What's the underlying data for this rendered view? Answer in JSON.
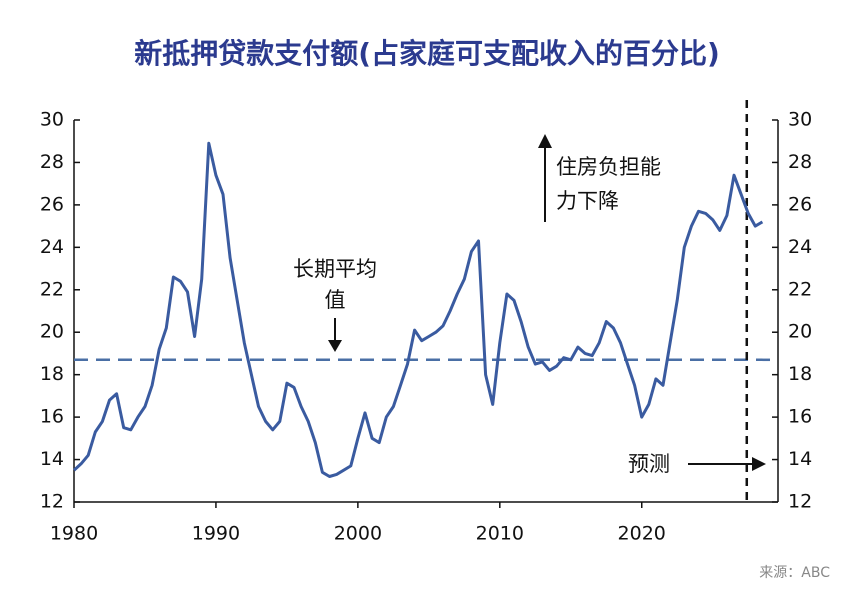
{
  "chart_data": {
    "type": "line",
    "title": "新抵押贷款支付额(占家庭可支配收入的百分比)",
    "x": [
      1980,
      1980.5,
      1981,
      1981.5,
      1982,
      1982.5,
      1983,
      1983.5,
      1984,
      1984.5,
      1985,
      1985.5,
      1986,
      1986.5,
      1987,
      1987.5,
      1988,
      1988.5,
      1989,
      1989.5,
      1990,
      1990.5,
      1991,
      1991.5,
      1992,
      1992.5,
      1993,
      1993.5,
      1994,
      1994.5,
      1995,
      1995.5,
      1996,
      1996.5,
      1997,
      1997.5,
      1998,
      1998.5,
      1999,
      1999.5,
      2000,
      2000.5,
      2001,
      2001.5,
      2002,
      2002.5,
      2003,
      2003.5,
      2004,
      2004.5,
      2005,
      2005.5,
      2006,
      2006.5,
      2007,
      2007.5,
      2008,
      2008.5,
      2009,
      2009.5,
      2010,
      2010.5,
      2011,
      2011.5,
      2012,
      2012.5,
      2013,
      2013.5,
      2014,
      2014.5,
      2015,
      2015.5,
      2016,
      2016.5,
      2017,
      2017.5,
      2018,
      2018.5,
      2019,
      2019.5,
      2020,
      2020.5,
      2021,
      2021.5,
      2022,
      2022.5,
      2023,
      2023.5,
      2024,
      2024.5,
      2025,
      2025.5,
      2026,
      2026.5,
      2027,
      2027.5,
      2028,
      2028.5
    ],
    "series": [
      {
        "color": "#3a5ba0",
        "values": [
          13.5,
          13.8,
          14.2,
          15.3,
          15.8,
          16.8,
          17.1,
          15.5,
          15.4,
          16.0,
          16.5,
          17.5,
          19.2,
          20.2,
          22.6,
          22.4,
          21.9,
          19.8,
          22.5,
          28.9,
          27.4,
          26.5,
          23.5,
          21.5,
          19.5,
          18.0,
          16.5,
          15.8,
          15.4,
          15.8,
          17.6,
          17.4,
          16.5,
          15.8,
          14.8,
          13.4,
          13.2,
          13.3,
          13.5,
          13.7,
          15.0,
          16.2,
          15.0,
          14.8,
          16.0,
          16.5,
          17.5,
          18.5,
          20.1,
          19.6,
          19.8,
          20.0,
          20.3,
          21.0,
          21.8,
          22.5,
          23.8,
          24.3,
          18.0,
          16.6,
          19.5,
          21.8,
          21.5,
          20.5,
          19.3,
          18.5,
          18.6,
          18.2,
          18.4,
          18.8,
          18.7,
          19.3,
          19.0,
          18.9,
          19.5,
          20.5,
          20.2,
          19.5,
          18.5,
          17.5,
          16.0,
          16.6,
          17.8,
          17.5,
          19.5,
          21.5,
          24.0,
          25.0,
          25.7,
          25.6,
          25.3,
          24.8,
          25.5,
          27.4,
          26.5,
          25.6,
          25.0,
          25.2
        ]
      }
    ],
    "average": 18.7,
    "forecast_start": 2027.4,
    "xlim": [
      1980,
      2029.6
    ],
    "xticks": [
      1980,
      1990,
      2000,
      2010,
      2020
    ],
    "ylim": [
      12,
      30
    ],
    "yticks": [
      12,
      14,
      16,
      18,
      20,
      22,
      24,
      26,
      28,
      30
    ],
    "y2lim": [
      12,
      30
    ],
    "y2ticks": [
      12,
      14,
      16,
      18,
      20,
      22,
      24,
      26,
      28,
      30
    ],
    "annotations": [
      "长期平均",
      "值",
      "住房负担能",
      "力下降",
      "预测"
    ],
    "source": "来源：ABC"
  }
}
